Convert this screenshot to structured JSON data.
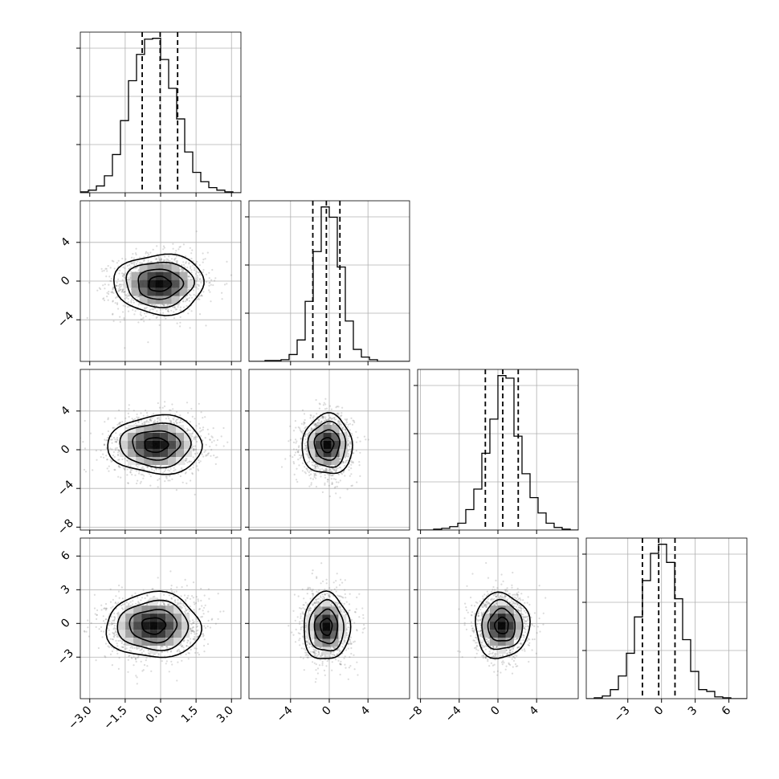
{
  "chart_data": {
    "type": "corner",
    "n_params": 4,
    "grid": true,
    "quantiles": [
      0.16,
      0.5,
      0.84
    ],
    "params": [
      {
        "range": [
          -3.4,
          3.4
        ],
        "ticks": [
          -3.0,
          -1.5,
          0.0,
          1.5,
          3.0
        ],
        "tick_labels": [
          "−3.0",
          "−1.5",
          "0.0",
          "1.5",
          "3.0"
        ],
        "quantile_values": [
          -0.78,
          -0.02,
          0.72
        ],
        "hist_edges": [
          -3.4,
          -3.06,
          -2.72,
          -2.38,
          -2.04,
          -1.7,
          -1.36,
          -1.02,
          -0.68,
          -0.34,
          0.0,
          0.34,
          0.68,
          1.02,
          1.36,
          1.7,
          2.04,
          2.38,
          2.72,
          3.06,
          3.4
        ],
        "hist_counts": [
          1,
          3,
          8,
          20,
          45,
          85,
          132,
          163,
          181,
          182,
          157,
          123,
          87,
          48,
          24,
          13,
          6,
          3,
          1,
          0
        ]
      },
      {
        "range": [
          -8.3,
          8.3
        ],
        "ticks": [
          -4,
          0,
          4
        ],
        "tick_labels": [
          "−4",
          "0",
          "4"
        ],
        "quantile_values": [
          -1.7,
          -0.3,
          1.1
        ],
        "hist_edges": [
          -8.3,
          -7.47,
          -6.64,
          -5.81,
          -4.98,
          -4.15,
          -3.32,
          -2.49,
          -1.66,
          -0.83,
          0.0,
          0.83,
          1.66,
          2.49,
          3.32,
          4.15,
          4.98,
          5.81,
          6.64,
          7.47,
          8.3
        ],
        "hist_counts": [
          0,
          0,
          1,
          1,
          2,
          8,
          25,
          70,
          128,
          180,
          168,
          110,
          47,
          14,
          5,
          2,
          0,
          0,
          0,
          0
        ]
      },
      {
        "range": [
          -8.3,
          8.3
        ],
        "ticks": [
          -8,
          -4,
          0,
          4
        ],
        "tick_labels": [
          "−8",
          "−4",
          "0",
          "4"
        ],
        "quantile_values": [
          -1.3,
          0.5,
          2.1
        ],
        "hist_edges": [
          -8.3,
          -7.47,
          -6.64,
          -5.81,
          -4.98,
          -4.15,
          -3.32,
          -2.49,
          -1.66,
          -0.83,
          0.0,
          0.83,
          1.66,
          2.49,
          3.32,
          4.15,
          4.98,
          5.81,
          6.64,
          7.47,
          8.3
        ],
        "hist_counts": [
          0,
          0,
          1,
          2,
          4,
          8,
          24,
          48,
          90,
          130,
          181,
          178,
          110,
          66,
          38,
          20,
          8,
          3,
          1,
          0
        ]
      },
      {
        "range": [
          -6.7,
          7.6
        ],
        "ticks": [
          -3,
          0,
          3,
          6
        ],
        "tick_labels": [
          "−3",
          "0",
          "3",
          "6"
        ],
        "quantile_values": [
          -1.7,
          -0.25,
          1.2
        ],
        "hist_edges": [
          -6.7,
          -5.985,
          -5.27,
          -4.555,
          -3.84,
          -3.125,
          -2.41,
          -1.695,
          -0.98,
          -0.265,
          0.45,
          1.165,
          1.88,
          2.595,
          3.31,
          4.025,
          4.74,
          5.455,
          6.17,
          6.885,
          7.6
        ],
        "hist_counts": [
          0,
          1,
          3,
          10,
          25,
          50,
          90,
          130,
          160,
          170,
          150,
          110,
          65,
          30,
          10,
          8,
          2,
          1,
          0,
          0
        ]
      }
    ],
    "y_ticks": {
      "1": {
        "ticks": [
          -4,
          0,
          4
        ],
        "labels": [
          "−4",
          "0",
          "4"
        ]
      },
      "2": {
        "ticks": [
          -8,
          -4,
          0,
          4
        ],
        "labels": [
          "−8",
          "−4",
          "0",
          "4"
        ]
      },
      "3": {
        "ticks": [
          -3,
          0,
          3,
          6
        ],
        "labels": [
          "−3",
          "0",
          "3",
          "6"
        ]
      }
    },
    "pairs": [
      {
        "row": 1,
        "col": 0,
        "mean": [
          -0.05,
          -0.3
        ],
        "sd": [
          0.95,
          1.55
        ],
        "rho": 0.05
      },
      {
        "row": 2,
        "col": 0,
        "mean": [
          -0.2,
          0.5
        ],
        "sd": [
          1.0,
          1.5
        ],
        "rho": 0.0
      },
      {
        "row": 2,
        "col": 1,
        "mean": [
          -0.2,
          0.5
        ],
        "sd": [
          1.3,
          1.55
        ],
        "rho": 0.0
      },
      {
        "row": 3,
        "col": 0,
        "mean": [
          -0.3,
          -0.2
        ],
        "sd": [
          1.0,
          1.45
        ],
        "rho": 0.05
      },
      {
        "row": 3,
        "col": 1,
        "mean": [
          -0.3,
          -0.3
        ],
        "sd": [
          1.2,
          1.5
        ],
        "rho": 0.0
      },
      {
        "row": 3,
        "col": 2,
        "mean": [
          0.4,
          -0.2
        ],
        "sd": [
          1.4,
          1.45
        ],
        "rho": 0.0
      }
    ],
    "colors": {
      "line": "#000000",
      "grid": "#b0b0b0",
      "points": "#7f7f7f",
      "background": "#ffffff"
    }
  }
}
